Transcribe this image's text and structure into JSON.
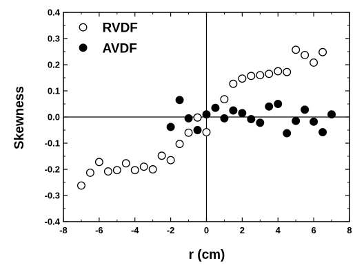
{
  "chart_data": {
    "type": "scatter",
    "title": "",
    "xlabel": "r (cm)",
    "ylabel": "Skewness",
    "xlim": [
      -8,
      8
    ],
    "ylim": [
      -0.4,
      0.4
    ],
    "x_ticks": [
      "-8",
      "-6",
      "-4",
      "-2",
      "0",
      "2",
      "4",
      "6",
      "8"
    ],
    "y_ticks": [
      "-0.4",
      "-0.3",
      "-0.2",
      "-0.1",
      "0.0",
      "0.1",
      "0.2",
      "0.3",
      "0.4"
    ],
    "zero_lines": true,
    "grid": false,
    "legend_position": "top-left",
    "series": [
      {
        "name": "RVDF",
        "marker": "open-circle",
        "color": "#000000",
        "points": [
          [
            -7.0,
            -0.262
          ],
          [
            -6.5,
            -0.213
          ],
          [
            -6.0,
            -0.172
          ],
          [
            -5.5,
            -0.208
          ],
          [
            -5.0,
            -0.203
          ],
          [
            -4.5,
            -0.177
          ],
          [
            -4.0,
            -0.203
          ],
          [
            -3.5,
            -0.19
          ],
          [
            -3.0,
            -0.2
          ],
          [
            -2.5,
            -0.148
          ],
          [
            -2.0,
            -0.165
          ],
          [
            -1.5,
            -0.103
          ],
          [
            -1.0,
            -0.06
          ],
          [
            -0.5,
            -0.002
          ],
          [
            0.0,
            -0.058
          ],
          [
            1.0,
            0.068
          ],
          [
            1.5,
            0.127
          ],
          [
            2.0,
            0.147
          ],
          [
            2.5,
            0.157
          ],
          [
            3.0,
            0.16
          ],
          [
            3.5,
            0.165
          ],
          [
            4.0,
            0.175
          ],
          [
            4.5,
            0.172
          ],
          [
            5.0,
            0.257
          ],
          [
            5.5,
            0.237
          ],
          [
            6.0,
            0.208
          ],
          [
            6.5,
            0.248
          ]
        ]
      },
      {
        "name": "AVDF",
        "marker": "filled-circle",
        "color": "#000000",
        "points": [
          [
            -2.0,
            -0.038
          ],
          [
            -1.5,
            0.065
          ],
          [
            -1.0,
            -0.005
          ],
          [
            -0.5,
            -0.05
          ],
          [
            0.0,
            0.01
          ],
          [
            0.5,
            0.035
          ],
          [
            1.0,
            -0.005
          ],
          [
            1.5,
            0.025
          ],
          [
            2.0,
            0.015
          ],
          [
            2.5,
            -0.008
          ],
          [
            3.0,
            -0.022
          ],
          [
            3.5,
            0.04
          ],
          [
            4.0,
            0.05
          ],
          [
            4.5,
            -0.062
          ],
          [
            5.0,
            -0.015
          ],
          [
            5.5,
            0.028
          ],
          [
            6.0,
            -0.018
          ],
          [
            6.5,
            -0.058
          ],
          [
            7.0,
            0.01
          ]
        ]
      }
    ]
  }
}
